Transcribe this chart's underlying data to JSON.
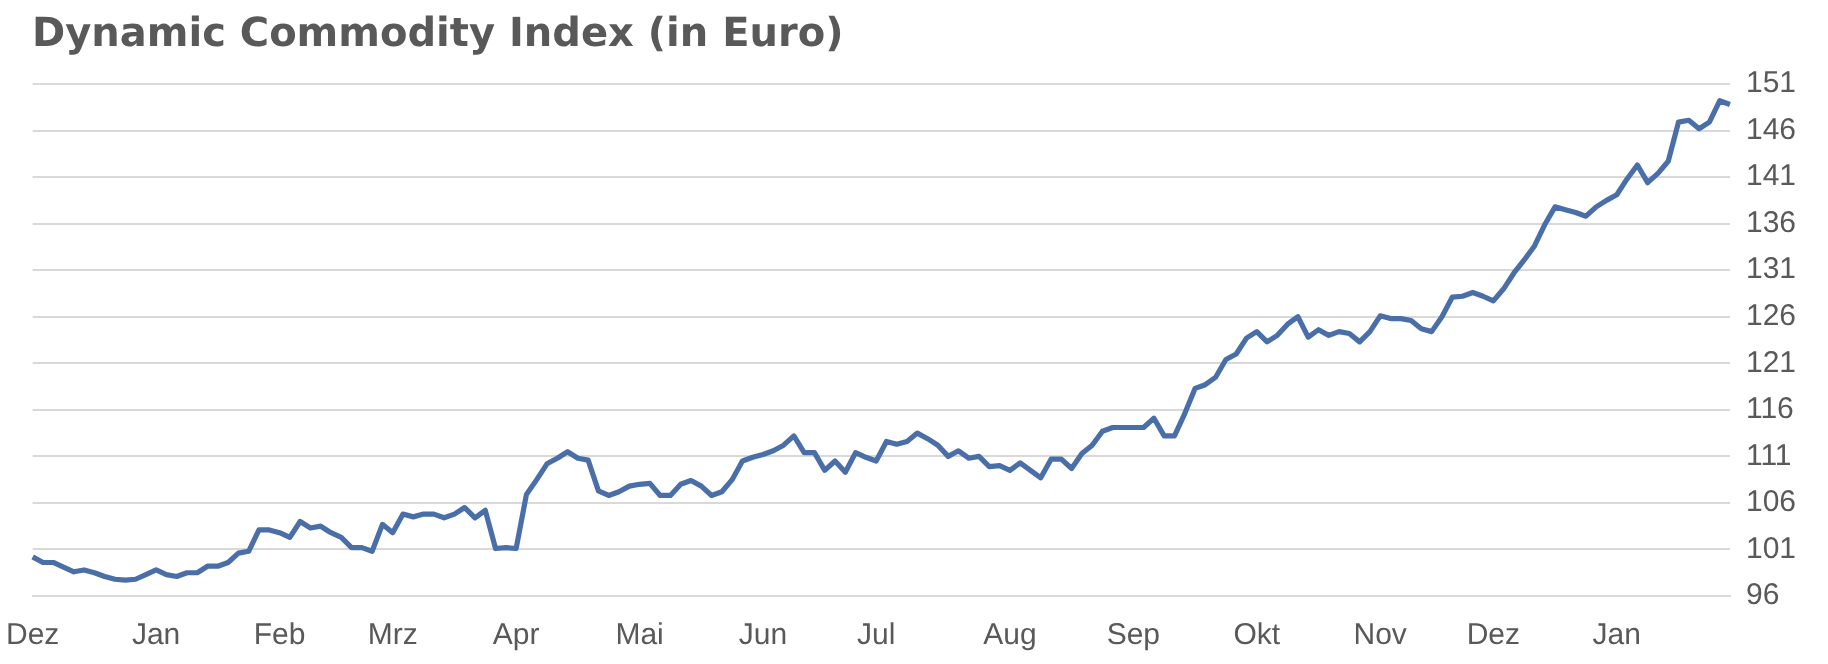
{
  "chart_data": {
    "type": "line",
    "title": "Dynamic Commodity Index (in Euro)",
    "categories": [
      "Dez",
      null,
      null,
      null,
      null,
      null,
      null,
      null,
      null,
      null,
      null,
      null,
      "Jan",
      null,
      null,
      null,
      null,
      null,
      null,
      null,
      null,
      null,
      null,
      null,
      "Feb",
      null,
      null,
      null,
      null,
      null,
      null,
      null,
      null,
      null,
      null,
      "Mrz",
      null,
      null,
      null,
      null,
      null,
      null,
      null,
      null,
      null,
      null,
      null,
      "Apr",
      null,
      null,
      null,
      null,
      null,
      null,
      null,
      null,
      null,
      null,
      null,
      "Mai",
      null,
      null,
      null,
      null,
      null,
      null,
      null,
      null,
      null,
      null,
      null,
      "Jun",
      null,
      null,
      null,
      null,
      null,
      null,
      null,
      null,
      null,
      null,
      "Jul",
      null,
      null,
      null,
      null,
      null,
      null,
      null,
      null,
      null,
      null,
      null,
      null,
      "Aug",
      null,
      null,
      null,
      null,
      null,
      null,
      null,
      null,
      null,
      null,
      null,
      "Sep",
      null,
      null,
      null,
      null,
      null,
      null,
      null,
      null,
      null,
      null,
      null,
      "Okt",
      null,
      null,
      null,
      null,
      null,
      null,
      null,
      null,
      null,
      null,
      null,
      "Nov",
      null,
      null,
      null,
      null,
      null,
      null,
      null,
      null,
      null,
      null,
      "Dez",
      null,
      null,
      null,
      null,
      null,
      null,
      null,
      null,
      null,
      null,
      null,
      "Jan",
      null,
      null,
      null,
      null,
      null,
      null,
      null,
      null,
      null,
      null,
      null
    ],
    "series": [
      {
        "color": "#4a6fa8",
        "values": [
          100.2,
          99.6,
          99.6,
          99.1,
          98.6,
          98.8,
          98.5,
          98.1,
          97.8,
          97.7,
          97.8,
          98.3,
          98.8,
          98.3,
          98.1,
          98.5,
          98.5,
          99.2,
          99.2,
          99.6,
          100.6,
          100.8,
          103.1,
          103.1,
          102.8,
          102.3,
          104.0,
          103.3,
          103.5,
          102.8,
          102.3,
          101.2,
          101.2,
          100.8,
          103.7,
          102.8,
          104.8,
          104.5,
          104.8,
          104.8,
          104.4,
          104.8,
          105.5,
          104.4,
          105.2,
          101.1,
          101.2,
          101.1,
          106.9,
          108.5,
          110.2,
          110.8,
          111.5,
          110.8,
          110.6,
          107.3,
          106.8,
          107.2,
          107.8,
          108.0,
          108.1,
          106.8,
          106.8,
          108.0,
          108.4,
          107.8,
          106.8,
          107.2,
          108.5,
          110.5,
          110.9,
          111.2,
          111.6,
          112.2,
          113.2,
          111.4,
          111.4,
          109.5,
          110.5,
          109.3,
          111.4,
          110.9,
          110.5,
          112.6,
          112.3,
          112.6,
          113.5,
          112.9,
          112.2,
          111.0,
          111.6,
          110.8,
          111.0,
          109.9,
          110.0,
          109.5,
          110.3,
          109.5,
          108.7,
          110.7,
          110.7,
          109.7,
          111.3,
          112.2,
          113.7,
          114.1,
          114.1,
          114.1,
          114.1,
          115.1,
          113.2,
          113.2,
          115.6,
          118.3,
          118.7,
          119.5,
          121.4,
          122.0,
          123.7,
          124.4,
          123.3,
          124.0,
          125.2,
          126.0,
          123.8,
          124.6,
          124.0,
          124.4,
          124.2,
          123.3,
          124.4,
          126.1,
          125.8,
          125.8,
          125.6,
          124.7,
          124.4,
          126.0,
          128.1,
          128.2,
          128.6,
          128.2,
          127.7,
          129.0,
          130.7,
          132.1,
          133.6,
          135.9,
          137.8,
          137.5,
          137.2,
          136.8,
          137.8,
          138.5,
          139.1,
          140.8,
          142.3,
          140.4,
          141.4,
          142.7,
          146.9,
          147.1,
          146.2,
          146.9,
          149.2,
          148.8
        ]
      }
    ],
    "ylim": [
      96,
      151
    ],
    "yticks": [
      96,
      101,
      106,
      111,
      116,
      121,
      126,
      131,
      136,
      141,
      146,
      151
    ],
    "grid": "y",
    "marker": "none",
    "line_style": "solid"
  }
}
